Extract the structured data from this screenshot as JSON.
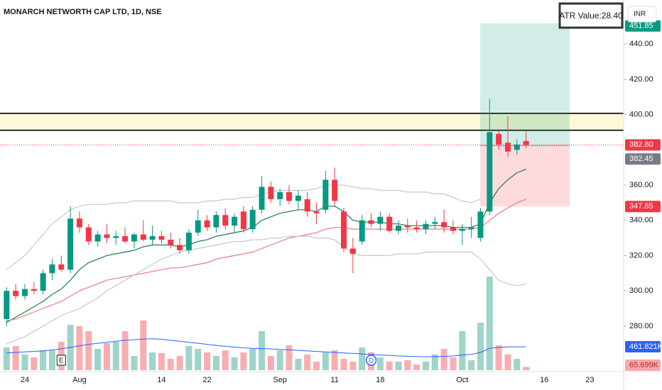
{
  "chart_data": {
    "type": "candlestick",
    "title": "MONARCH NETWORTH CAP LTD, 1D, NSE",
    "currency": "INR",
    "atr": {
      "text": "ATR Value:",
      "value": 28.4,
      "value_label": "28.40"
    },
    "categories": [
      null,
      null,
      "24",
      null,
      null,
      null,
      null,
      null,
      "Aug",
      null,
      null,
      null,
      null,
      null,
      null,
      null,
      null,
      "14",
      null,
      null,
      null,
      null,
      "22",
      null,
      null,
      null,
      null,
      null,
      null,
      null,
      "Sep",
      null,
      null,
      null,
      null,
      null,
      "11",
      null,
      null,
      null,
      null,
      "18",
      null,
      null,
      null,
      null,
      null,
      null,
      null,
      null,
      "Oct",
      null,
      null,
      null,
      null,
      null,
      null,
      null,
      null,
      "16",
      null,
      null,
      null,
      null,
      "23"
    ],
    "open": [
      284,
      300,
      297,
      301,
      300,
      310,
      315,
      312,
      341,
      336,
      328,
      332,
      330,
      331,
      328,
      332,
      329,
      331,
      329,
      326,
      323,
      333,
      340,
      336,
      343,
      337,
      345,
      335,
      346,
      359,
      352,
      356,
      351,
      352,
      345,
      346,
      363,
      345,
      324,
      328,
      340,
      338,
      342,
      334,
      337,
      336,
      335,
      338,
      339,
      336,
      334,
      335,
      330,
      345,
      389,
      384,
      380,
      385,
      null,
      null,
      null,
      null,
      null,
      null,
      null
    ],
    "high": [
      302,
      304,
      304,
      305,
      312,
      318,
      320,
      348,
      345,
      338,
      334,
      338,
      334,
      336,
      333,
      340,
      337,
      334,
      333,
      330,
      335,
      346,
      343,
      345,
      347,
      344,
      348,
      348,
      365,
      362,
      358,
      360,
      357,
      356,
      350,
      368,
      370,
      347,
      330,
      343,
      344,
      345,
      344,
      340,
      341,
      340,
      340,
      342,
      346,
      340,
      338,
      342,
      347,
      409,
      391,
      399,
      386,
      391,
      null,
      null,
      null,
      null,
      null,
      null,
      null
    ],
    "low": [
      280,
      295,
      295,
      298,
      298,
      306,
      311,
      310,
      333,
      326,
      325,
      327,
      326,
      327,
      324,
      328,
      326,
      327,
      324,
      321,
      321,
      331,
      334,
      333,
      335,
      333,
      333,
      333,
      344,
      350,
      348,
      349,
      346,
      342,
      338,
      344,
      348,
      322,
      310,
      326,
      336,
      334,
      333,
      332,
      333,
      333,
      332,
      335,
      333,
      332,
      326,
      330,
      328,
      343,
      380,
      376,
      377,
      381,
      null,
      null,
      null,
      null,
      null,
      null,
      null
    ],
    "close": [
      300,
      297,
      301,
      300,
      310,
      315,
      312,
      341,
      336,
      328,
      332,
      330,
      331,
      328,
      332,
      329,
      331,
      329,
      326,
      323,
      333,
      340,
      336,
      343,
      337,
      342,
      335,
      346,
      359,
      352,
      356,
      351,
      354,
      345,
      344,
      363,
      351,
      324,
      321,
      340,
      338,
      342,
      334,
      337,
      336,
      335,
      338,
      339,
      336,
      334,
      335,
      336,
      345,
      390,
      383,
      379,
      383,
      382.8,
      null,
      null,
      null,
      null,
      null,
      null,
      null
    ],
    "last_label": "382.80",
    "up_color": "#089981",
    "down_color": "#f23645",
    "ylim": [
      255,
      465
    ],
    "yticks": [
      {
        "value": 280,
        "label": "280.00"
      },
      {
        "value": 300,
        "label": "300.00"
      },
      {
        "value": 320,
        "label": "320.00"
      },
      {
        "value": 340,
        "label": "340.00"
      },
      {
        "value": 360,
        "label": "360.00"
      },
      {
        "value": 400,
        "label": "400.00"
      },
      {
        "value": 420,
        "label": "420.00"
      },
      {
        "value": 440,
        "label": "440.00"
      }
    ],
    "grid": false,
    "lines": [
      {
        "color": "#1e7a4e",
        "values": [
          282,
          285,
          288,
          291,
          294,
          298,
          301,
          306,
          312,
          316,
          318,
          320,
          321,
          322,
          323,
          325,
          326,
          326,
          326,
          325,
          326,
          328,
          329,
          331,
          332,
          333,
          334,
          336,
          340,
          342,
          344,
          345,
          346,
          346,
          345,
          348,
          348,
          345,
          340,
          339,
          339,
          339,
          338,
          338,
          337,
          337,
          337,
          337,
          337,
          336,
          336,
          336,
          338,
          350,
          358,
          363,
          367,
          369,
          null,
          null,
          null,
          null,
          null,
          null,
          null
        ]
      },
      {
        "color": "#f07a7a",
        "values": [
          283,
          284,
          286,
          288,
          290,
          292,
          294,
          297,
          300,
          302,
          304,
          306,
          307,
          308,
          309,
          310,
          311,
          312,
          313,
          313,
          314,
          315,
          316,
          318,
          319,
          320,
          321,
          322,
          324,
          326,
          328,
          330,
          331,
          332,
          333,
          335,
          336,
          336,
          335,
          335,
          335,
          335,
          335,
          335,
          335,
          335,
          335,
          335,
          335,
          335,
          335,
          335,
          336,
          340,
          344,
          347,
          350,
          352,
          null,
          null,
          null,
          null,
          null,
          null,
          null
        ]
      },
      {
        "color": "#c8c8c8",
        "values": [
          312,
          316,
          320,
          326,
          332,
          338,
          342,
          346,
          348,
          349,
          349,
          349,
          350,
          350,
          351,
          351,
          351,
          351,
          351,
          350,
          350,
          350,
          351,
          351,
          352,
          352,
          353,
          353,
          355,
          356,
          357,
          357,
          357,
          357,
          358,
          360,
          360,
          360,
          359,
          358,
          358,
          357,
          357,
          357,
          356,
          356,
          356,
          355,
          355,
          353,
          351,
          350,
          352,
          null,
          null,
          null,
          null,
          null,
          null,
          null,
          null,
          null,
          null,
          null,
          null
        ]
      },
      {
        "color": "#c8c8c8",
        "values": [
          270,
          272,
          274,
          277,
          280,
          283,
          286,
          288,
          290,
          293,
          296,
          300,
          303,
          306,
          309,
          312,
          315,
          318,
          320,
          322,
          323,
          324,
          325,
          326,
          327,
          328,
          328,
          329,
          329,
          330,
          330,
          331,
          331,
          331,
          330,
          330,
          329,
          325,
          321,
          320,
          320,
          320,
          320,
          321,
          321,
          321,
          322,
          322,
          322,
          322,
          322,
          322,
          318,
          312,
          306,
          304,
          303,
          304,
          null,
          null,
          null,
          null,
          null,
          null,
          null
        ]
      }
    ],
    "levels": [
      {
        "value": 400.7,
        "color": "#000000"
      },
      {
        "value": 391.1,
        "color": "#000000"
      }
    ],
    "level_zone_color": "#fff8d6",
    "position": {
      "entry": 382.45,
      "entry_label": "382.45",
      "target": 451.85,
      "target_label": "451.85",
      "stop": 347.85,
      "stop_label": "347.85"
    },
    "volume": {
      "values": [
        448000,
        476000,
        308000,
        252000,
        392000,
        392000,
        560000,
        896000,
        868000,
        770000,
        420000,
        532000,
        560000,
        770000,
        280000,
        980000,
        350000,
        336000,
        224000,
        280000,
        476000,
        420000,
        350000,
        280000,
        392000,
        252000,
        350000,
        420000,
        770000,
        280000,
        392000,
        490000,
        224000,
        308000,
        168000,
        350000,
        392000,
        224000,
        168000,
        448000,
        350000,
        252000,
        168000,
        168000,
        196000,
        112000,
        168000,
        308000,
        420000,
        252000,
        770000,
        196000,
        938000,
        1848000,
        490000,
        308000,
        224000,
        65699,
        null,
        null,
        null,
        null,
        null,
        null,
        null
      ],
      "last_label": "65.699K",
      "ma_values": [
        340000,
        350000,
        360000,
        370000,
        380000,
        400000,
        420000,
        450000,
        480000,
        510000,
        530000,
        550000,
        570000,
        590000,
        600000,
        615000,
        620000,
        610000,
        590000,
        570000,
        550000,
        530000,
        510000,
        490000,
        470000,
        455000,
        440000,
        430000,
        425000,
        420000,
        410000,
        400000,
        390000,
        380000,
        370000,
        360000,
        350000,
        340000,
        330000,
        320000,
        310000,
        300000,
        290000,
        280000,
        275000,
        270000,
        265000,
        268000,
        272000,
        280000,
        300000,
        310000,
        350000,
        430000,
        450000,
        458000,
        460000,
        461821,
        null,
        null,
        null,
        null,
        null,
        null,
        null
      ],
      "ma_last_label": "461.821K",
      "ma_color": "#2962ff",
      "up_color": "#9ed4ca",
      "down_color": "#f8aeb0"
    },
    "events": [
      {
        "label": "E",
        "index": 6
      },
      {
        "label": "D",
        "index": 40
      }
    ]
  }
}
